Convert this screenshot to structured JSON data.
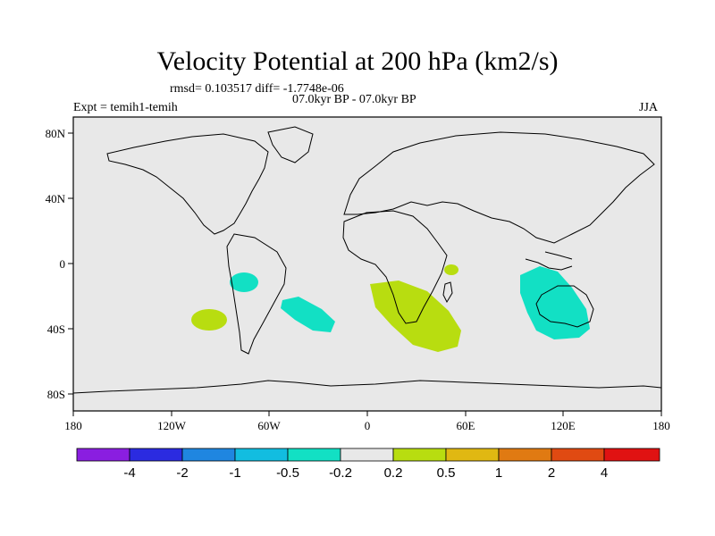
{
  "chart_data": {
    "type": "map",
    "title": "Velocity Potential at 200 hPa (km2/s)",
    "stats": "rmsd= 0.103517 diff= -1.7748e-06",
    "period": "07.0kyr BP - 07.0kyr BP",
    "experiment": "Expt = temih1-temih",
    "season": "JJA",
    "lon_ticks": [
      "180",
      "120W",
      "60W",
      "0",
      "60E",
      "120E",
      "180"
    ],
    "lon_values": [
      -180,
      -120,
      -60,
      0,
      60,
      120,
      180
    ],
    "lat_ticks": [
      "80N",
      "40N",
      "0",
      "40S",
      "80S"
    ],
    "lat_values": [
      80,
      40,
      0,
      -40,
      -80
    ],
    "lon_range": [
      -180,
      180
    ],
    "lat_range": [
      -90,
      90
    ],
    "colorbar": {
      "labels": [
        "-4",
        "-2",
        "-1",
        "-0.5",
        "-0.2",
        "0.2",
        "0.5",
        "1",
        "2",
        "4"
      ],
      "colors": [
        "#8a1ee0",
        "#2b2be0",
        "#1f86e0",
        "#12bde0",
        "#12e0c4",
        "#e8e8e8",
        "#b8dd10",
        "#e0b812",
        "#e07a12",
        "#e04a12",
        "#e01212"
      ]
    },
    "anomaly_regions": [
      {
        "name": "region-south-america-west",
        "level": "-0.5 to -0.2",
        "color": "#12e0c4",
        "lon": -75,
        "lat": -18
      },
      {
        "name": "region-southeast-pacific",
        "level": "0.2 to 0.5",
        "color": "#b8dd10",
        "lon": -102,
        "lat": -31
      },
      {
        "name": "region-south-atlantic",
        "level": "-0.5 to -0.2",
        "color": "#12e0c4",
        "lon": -45,
        "lat": -31
      },
      {
        "name": "region-southern-africa",
        "level": "0.2 to 0.5",
        "color": "#b8dd10",
        "lon": 30,
        "lat": -30
      },
      {
        "name": "region-mozambique-channel",
        "level": "0.2 to 0.5",
        "color": "#b8dd10",
        "lon": 52,
        "lat": -4
      },
      {
        "name": "region-australia-indian-ocean",
        "level": "-0.5 to -0.2",
        "color": "#12e0c4",
        "lon": 118,
        "lat": -20
      }
    ]
  }
}
